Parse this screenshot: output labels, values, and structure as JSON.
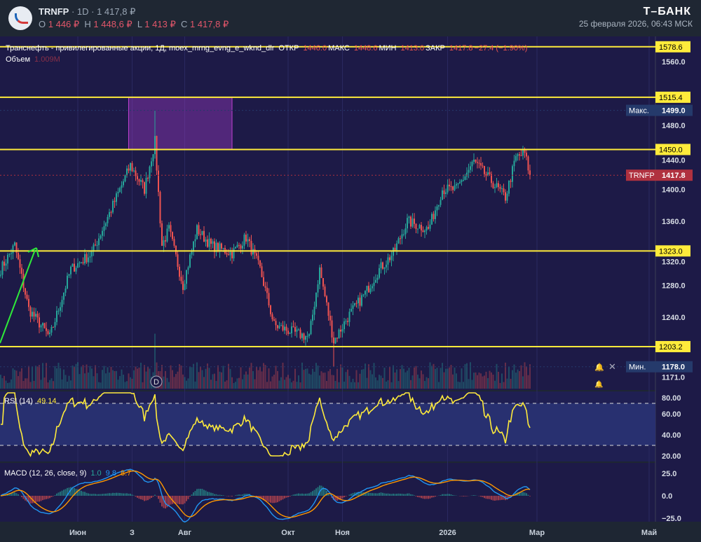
{
  "header": {
    "ticker": "TRNFP",
    "interval": "1D",
    "price": "1 417,8 ₽",
    "o_label": "O",
    "o": "1 446 ₽",
    "h_label": "H",
    "h": "1 448,6 ₽",
    "l_label": "L",
    "l": "1 413 ₽",
    "c_label": "C",
    "c": "1 417,8 ₽",
    "brand": "Т–БАНК",
    "datetime": "25 февраля 2026, 06:43 МСК"
  },
  "legend": {
    "title": "Транснефть - привилегированные акции, 1Д, moex_mrng_evng_e_wknd_dlr",
    "open_label": "ОТКР",
    "open": "1446.0",
    "high_label": "МАКС",
    "high": "1448.6",
    "low_label": "МИН",
    "low": "1413.0",
    "close_label": "ЗАКР",
    "close": "1417.8",
    "change": "−27.4 (−1.90%)",
    "volume_label": "Объем",
    "volume": "1.009M"
  },
  "colors": {
    "up": "#26a69a",
    "down": "#ef5350",
    "level": "#ffeb3b",
    "rsi": "#ffeb3b",
    "macd": "#2196f3",
    "signal": "#ff9800",
    "bg": "#1d1a47"
  },
  "chart_data": {
    "type": "candlestick",
    "ylim": [
      1165,
      1590
    ],
    "yticks": [
      "1560.0",
      "1480.0",
      "1440.0",
      "1400.0",
      "1360.0",
      "1320.0",
      "1280.0",
      "1240.0",
      "1171.0"
    ],
    "levels": [
      "1578.6",
      "1515.4",
      "1450.0",
      "1323.0",
      "1203.2"
    ],
    "max_label": "Макс.",
    "max_value": "1499.0",
    "min_label": "Мин.",
    "min_value": "1178.0",
    "last_label": "TRNFP",
    "last_value": "1417.8",
    "zone": {
      "from_day": 73,
      "to_day": 132,
      "low": 1450,
      "high": 1515.4
    },
    "anchors": [
      [
        0,
        1300
      ],
      [
        8,
        1330
      ],
      [
        16,
        1250
      ],
      [
        28,
        1215
      ],
      [
        40,
        1300
      ],
      [
        52,
        1320
      ],
      [
        64,
        1380
      ],
      [
        74,
        1430
      ],
      [
        82,
        1400
      ],
      [
        88,
        1460
      ],
      [
        92,
        1330
      ],
      [
        96,
        1350
      ],
      [
        104,
        1280
      ],
      [
        112,
        1350
      ],
      [
        120,
        1330
      ],
      [
        132,
        1320
      ],
      [
        140,
        1340
      ],
      [
        148,
        1300
      ],
      [
        156,
        1230
      ],
      [
        168,
        1220
      ],
      [
        176,
        1215
      ],
      [
        182,
        1300
      ],
      [
        190,
        1210
      ],
      [
        198,
        1240
      ],
      [
        208,
        1270
      ],
      [
        216,
        1300
      ],
      [
        224,
        1320
      ],
      [
        232,
        1360
      ],
      [
        244,
        1350
      ],
      [
        252,
        1400
      ],
      [
        260,
        1400
      ],
      [
        270,
        1435
      ],
      [
        280,
        1410
      ],
      [
        288,
        1390
      ],
      [
        294,
        1440
      ],
      [
        299,
        1445
      ],
      [
        302,
        1418
      ]
    ],
    "xticks": [
      [
        "Июн",
        44
      ],
      [
        "З",
        75
      ],
      [
        "Авг",
        105
      ],
      [
        "Окт",
        164
      ],
      [
        "Ноя",
        195
      ],
      [
        "2026",
        255
      ],
      [
        "Мар",
        306
      ],
      [
        "Май",
        370
      ]
    ],
    "rsi": {
      "label": "RSI (14)",
      "value": "49.14",
      "yticks": [
        "80.00",
        "60.00",
        "40.00",
        "20.00"
      ],
      "upper": 70,
      "lower": 30
    },
    "macd": {
      "label": "MACD (12, 26, close, 9)",
      "hist": "1.0",
      "macd": "9.8",
      "signal": "8.7",
      "yticks": [
        "25.0",
        "0.0",
        "−25.0"
      ]
    }
  }
}
